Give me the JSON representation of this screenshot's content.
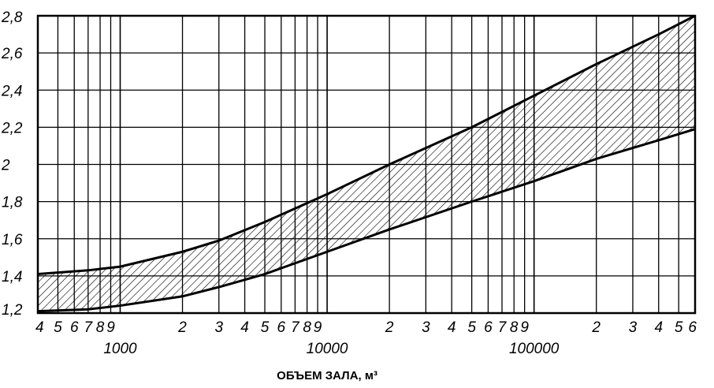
{
  "chart_data": {
    "type": "area",
    "title": "",
    "xlabel": "ОБЪЕМ ЗАЛА, м³",
    "ylabel": "",
    "x_scale": "log",
    "xlim": [
      400,
      600000
    ],
    "ylim": [
      1.2,
      2.8
    ],
    "grid": true,
    "y_ticks": [
      "1,2",
      "1,4",
      "1,6",
      "1,8",
      "2",
      "2,2",
      "2,4",
      "2,6",
      "2,8"
    ],
    "x_ticks": [
      {
        "value": 400,
        "label": "4"
      },
      {
        "value": 500,
        "label": "5"
      },
      {
        "value": 600,
        "label": "6"
      },
      {
        "value": 700,
        "label": "7"
      },
      {
        "value": 800,
        "label": "8"
      },
      {
        "value": 900,
        "label": "9"
      },
      {
        "value": 2000,
        "label": "2"
      },
      {
        "value": 3000,
        "label": "3"
      },
      {
        "value": 4000,
        "label": "4"
      },
      {
        "value": 5000,
        "label": "5"
      },
      {
        "value": 6000,
        "label": "6"
      },
      {
        "value": 7000,
        "label": "7"
      },
      {
        "value": 8000,
        "label": "8"
      },
      {
        "value": 9000,
        "label": "9"
      },
      {
        "value": 20000,
        "label": "2"
      },
      {
        "value": 30000,
        "label": "3"
      },
      {
        "value": 40000,
        "label": "4"
      },
      {
        "value": 50000,
        "label": "5"
      },
      {
        "value": 60000,
        "label": "6"
      },
      {
        "value": 70000,
        "label": "7"
      },
      {
        "value": 80000,
        "label": "8"
      },
      {
        "value": 90000,
        "label": "9"
      },
      {
        "value": 200000,
        "label": "2"
      },
      {
        "value": 300000,
        "label": "3"
      },
      {
        "value": 400000,
        "label": "4"
      },
      {
        "value": 500000,
        "label": "5"
      },
      {
        "value": 600000,
        "label": "6"
      }
    ],
    "decade_labels": [
      {
        "value": 1000,
        "label": "1000"
      },
      {
        "value": 10000,
        "label": "10000"
      },
      {
        "value": 100000,
        "label": "100000"
      }
    ],
    "series": [
      {
        "role": "upper",
        "x": [
          400,
          700,
          1000,
          2000,
          3000,
          5000,
          10000,
          20000,
          50000,
          100000,
          200000,
          400000,
          600000
        ],
        "values": [
          1.41,
          1.43,
          1.45,
          1.53,
          1.59,
          1.69,
          1.84,
          2.0,
          2.2,
          2.37,
          2.54,
          2.7,
          2.8
        ]
      },
      {
        "role": "lower",
        "x": [
          400,
          700,
          1000,
          2000,
          3000,
          5000,
          10000,
          20000,
          50000,
          100000,
          200000,
          400000,
          600000
        ],
        "values": [
          1.21,
          1.22,
          1.24,
          1.29,
          1.34,
          1.41,
          1.53,
          1.65,
          1.8,
          1.91,
          2.03,
          2.13,
          2.19
        ]
      }
    ],
    "colors": {
      "line": "#000000",
      "hatch": "#000000",
      "background": "#ffffff"
    }
  }
}
